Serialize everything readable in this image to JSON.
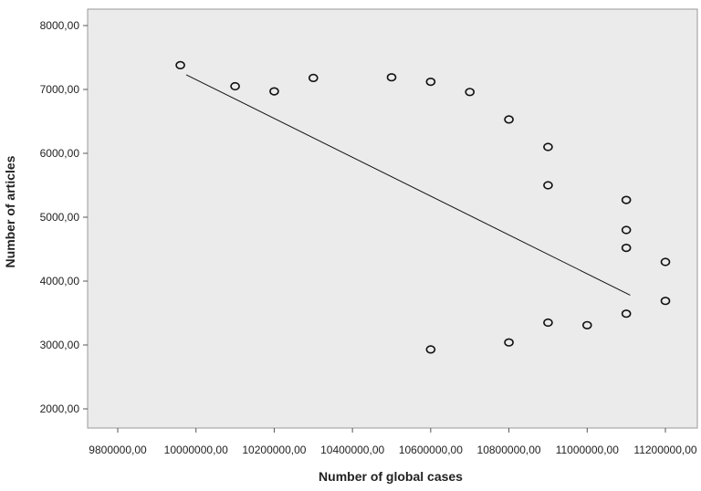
{
  "chart_data": {
    "type": "scatter",
    "title": "",
    "xlabel": "Number of global cases",
    "ylabel": "Number of articles",
    "xlim": [
      9800000,
      11200000
    ],
    "ylim": [
      2000,
      8000
    ],
    "x_ticks": [
      9800000,
      10000000,
      10200000,
      10400000,
      10600000,
      10800000,
      11000000,
      11200000
    ],
    "x_tick_labels": [
      "9800000,00",
      "10000000,00",
      "10200000,00",
      "10400000,00",
      "10600000,00",
      "10800000,00",
      "11000000,00",
      "11200000,00"
    ],
    "y_ticks": [
      2000,
      3000,
      4000,
      5000,
      6000,
      7000,
      8000
    ],
    "y_tick_labels": [
      "2000,00",
      "3000,00",
      "4000,00",
      "5000,00",
      "6000,00",
      "7000,00",
      "8000,00"
    ],
    "grid": false,
    "points": [
      {
        "x": 9960000,
        "y": 7380
      },
      {
        "x": 10100000,
        "y": 7050
      },
      {
        "x": 10200000,
        "y": 6970
      },
      {
        "x": 10300000,
        "y": 7180
      },
      {
        "x": 10500000,
        "y": 7190
      },
      {
        "x": 10600000,
        "y": 7120
      },
      {
        "x": 10700000,
        "y": 6960
      },
      {
        "x": 10800000,
        "y": 6530
      },
      {
        "x": 10900000,
        "y": 6100
      },
      {
        "x": 10900000,
        "y": 5500
      },
      {
        "x": 11100000,
        "y": 5270
      },
      {
        "x": 11100000,
        "y": 4800
      },
      {
        "x": 11100000,
        "y": 4520
      },
      {
        "x": 11200000,
        "y": 4300
      },
      {
        "x": 11200000,
        "y": 3690
      },
      {
        "x": 11100000,
        "y": 3490
      },
      {
        "x": 11000000,
        "y": 3310
      },
      {
        "x": 10900000,
        "y": 3350
      },
      {
        "x": 10800000,
        "y": 3040
      },
      {
        "x": 10600000,
        "y": 2930
      }
    ],
    "fit_line": {
      "x": [
        9975000,
        11110000
      ],
      "y": [
        7230,
        3780
      ]
    },
    "colors": {
      "plot_background": "#ebebeb",
      "marker": "#111111",
      "line": "#111111"
    }
  }
}
